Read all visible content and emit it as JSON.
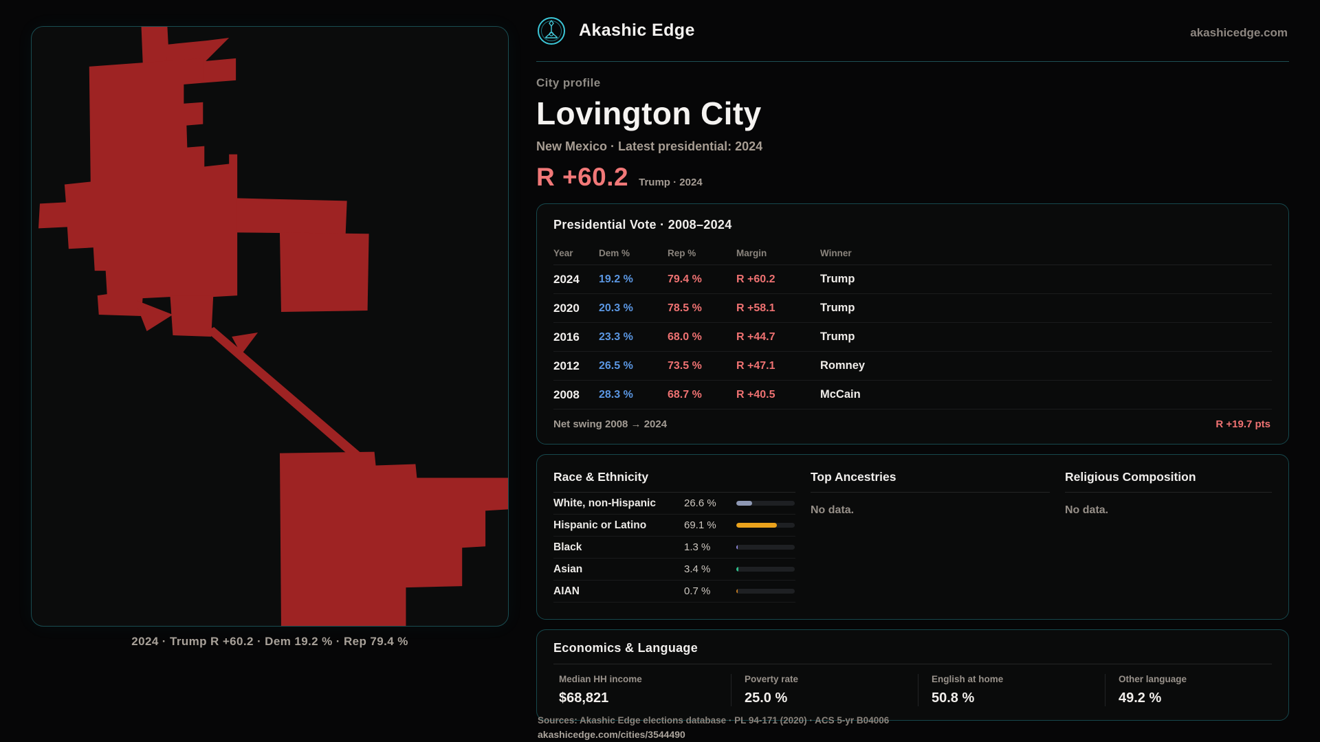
{
  "brand": {
    "name": "Akashic Edge",
    "domain": "akashicedge.com",
    "accent_color": "#3cc7d8"
  },
  "profile": {
    "kicker": "City profile",
    "title": "Lovington City",
    "subtitle": "New Mexico · Latest presidential: 2024",
    "headline_margin": "R +60.2",
    "headline_context": "Trump · 2024",
    "margin_color": "#f17878"
  },
  "map": {
    "caption": "2024 · Trump R +60.2 · Dem 19.2 % · Rep 79.4 %",
    "fill_color": "#9e2323"
  },
  "vote_panel": {
    "title": "Presidential Vote · 2008–2024",
    "columns": [
      "Year",
      "Dem %",
      "Rep %",
      "Margin",
      "Winner"
    ],
    "dem_color": "#5b97e3",
    "rep_color": "#ef7272",
    "rows": [
      {
        "year": "2024",
        "dem": "19.2 %",
        "rep": "79.4 %",
        "margin": "R +60.2",
        "winner": "Trump"
      },
      {
        "year": "2020",
        "dem": "20.3 %",
        "rep": "78.5 %",
        "margin": "R +58.1",
        "winner": "Trump"
      },
      {
        "year": "2016",
        "dem": "23.3 %",
        "rep": "68.0 %",
        "margin": "R +44.7",
        "winner": "Trump"
      },
      {
        "year": "2012",
        "dem": "26.5 %",
        "rep": "73.5 %",
        "margin": "R +47.1",
        "winner": "Romney"
      },
      {
        "year": "2008",
        "dem": "28.3 %",
        "rep": "68.7 %",
        "margin": "R +40.5",
        "winner": "McCain"
      }
    ],
    "net_swing_label": "Net swing 2008 → 2024",
    "net_swing_value": "R +19.7 pts"
  },
  "demographics": {
    "race": {
      "title": "Race & Ethnicity",
      "rows": [
        {
          "label": "White, non-Hispanic",
          "value": "26.6 %",
          "pct": 26.6,
          "color": "#8e98b4"
        },
        {
          "label": "Hispanic or Latino",
          "value": "69.1 %",
          "pct": 69.1,
          "color": "#eaa21c"
        },
        {
          "label": "Black",
          "value": "1.3 %",
          "pct": 1.3,
          "color": "#8d86d8"
        },
        {
          "label": "Asian",
          "value": "3.4 %",
          "pct": 3.4,
          "color": "#2fbe8a"
        },
        {
          "label": "AIAN",
          "value": "0.7 %",
          "pct": 0.7,
          "color": "#c27b22"
        }
      ]
    },
    "ancestries": {
      "title": "Top Ancestries",
      "empty": "No data."
    },
    "religion": {
      "title": "Religious Composition",
      "empty": "No data."
    }
  },
  "economics": {
    "title": "Economics & Language",
    "stats": [
      {
        "label": "Median HH income",
        "value": "$68,821"
      },
      {
        "label": "Poverty rate",
        "value": "25.0 %"
      },
      {
        "label": "English at home",
        "value": "50.8 %"
      },
      {
        "label": "Other language",
        "value": "49.2 %"
      }
    ]
  },
  "footer": {
    "sources": "Sources: Akashic Edge elections database · PL 94-171 (2020) · ACS 5-yr B04006",
    "permalink": "akashicedge.com/cities/3544490"
  }
}
